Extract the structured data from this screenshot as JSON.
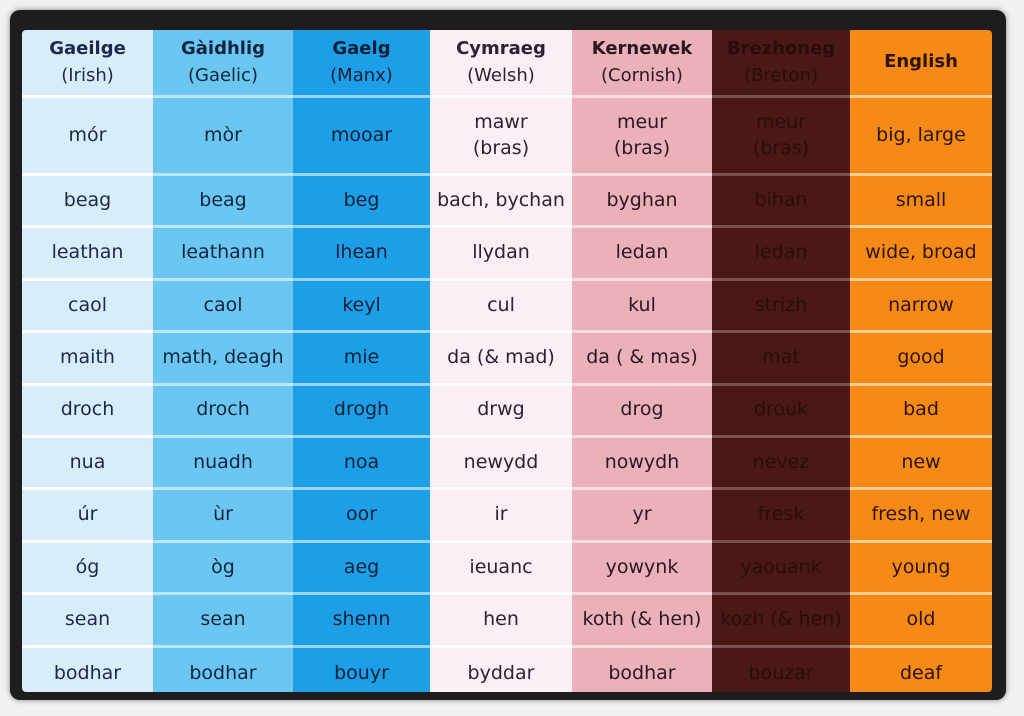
{
  "columns": [
    {
      "key": "irish",
      "name": "Gaeilge",
      "sub": "(Irish)",
      "words": [
        "mór",
        "beag",
        "leathan",
        "caol",
        "maith",
        "droch",
        "nua",
        "úr",
        "óg",
        "sean",
        "bodhar"
      ]
    },
    {
      "key": "gaelic",
      "name": "Gàidhlig",
      "sub": "(Gaelic)",
      "words": [
        "mòr",
        "beag",
        "leathann",
        "caol",
        "math, deagh",
        "droch",
        "nuadh",
        "ùr",
        "òg",
        "sean",
        "bodhar"
      ]
    },
    {
      "key": "manx",
      "name": "Gaelg",
      "sub": "(Manx)",
      "words": [
        "mooar",
        "beg",
        "lhean",
        "keyl",
        "mie",
        "drogh",
        "noa",
        "oor",
        "aeg",
        "shenn",
        "bouyr"
      ]
    },
    {
      "key": "welsh",
      "name": "Cymraeg",
      "sub": "(Welsh)",
      "words": [
        "mawr\n(bras)",
        "bach, bychan",
        "llydan",
        "cul",
        "da (& mad)",
        "drwg",
        "newydd",
        "ir",
        "ieuanc",
        "hen",
        "byddar"
      ]
    },
    {
      "key": "cornish",
      "name": "Kernewek",
      "sub": "(Cornish)",
      "words": [
        "meur\n(bras)",
        "byghan",
        "ledan",
        "kul",
        "da ( & mas)",
        "drog",
        "nowydh",
        "yr",
        "yowynk",
        "koth (& hen)",
        "bodhar"
      ]
    },
    {
      "key": "breton",
      "name": "Brezhoneg",
      "sub": "(Breton)",
      "words": [
        "meur\n(bras)",
        "bihan",
        "ledan",
        "strizh",
        "mat",
        "drouk",
        "nevez",
        "fresk",
        "yaouank",
        "kozh (& hen)",
        "bouzar"
      ]
    },
    {
      "key": "english",
      "name": "English",
      "sub": "",
      "words": [
        "big, large",
        "small",
        "wide, broad",
        "narrow",
        "good",
        "bad",
        "new",
        "fresh, new",
        "young",
        "old",
        "deaf"
      ]
    }
  ]
}
